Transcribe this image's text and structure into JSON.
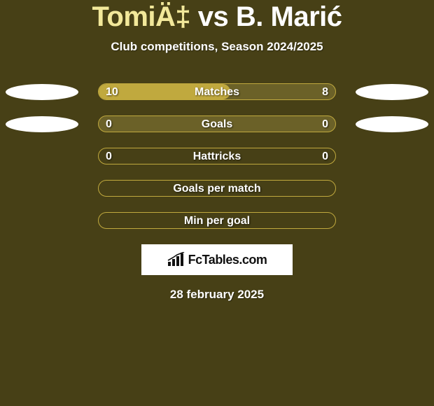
{
  "theme": {
    "background": "#474016",
    "accent": "#f2e89a",
    "ellipse_fill": "#ffffff",
    "text": "#ffffff"
  },
  "title": {
    "player1": "TomiÄ‡",
    "vs": " vs ",
    "player2": "B. Marić"
  },
  "subtitle": "Club competitions, Season 2024/2025",
  "rows": [
    {
      "label": "Matches",
      "left_value": "10",
      "right_value": "8",
      "show_values": true,
      "fill_pct": 55.6,
      "fill_color": "#c0a93e",
      "border_color": "#c0a93e",
      "track_color": "#6b6128",
      "show_ellipses": true
    },
    {
      "label": "Goals",
      "left_value": "0",
      "right_value": "0",
      "show_values": true,
      "fill_pct": 0,
      "fill_color": "#c0a93e",
      "border_color": "#c0a93e",
      "track_color": "#6b6128",
      "show_ellipses": true
    },
    {
      "label": "Hattricks",
      "left_value": "0",
      "right_value": "0",
      "show_values": true,
      "fill_pct": 0,
      "fill_color": "#c0a93e",
      "border_color": "#c0a93e",
      "track_color": "transparent",
      "show_ellipses": false
    },
    {
      "label": "Goals per match",
      "left_value": "",
      "right_value": "",
      "show_values": false,
      "fill_pct": 0,
      "fill_color": "#c0a93e",
      "border_color": "#c0a93e",
      "track_color": "transparent",
      "show_ellipses": false
    },
    {
      "label": "Min per goal",
      "left_value": "",
      "right_value": "",
      "show_values": false,
      "fill_pct": 0,
      "fill_color": "#c0a93e",
      "border_color": "#c0a93e",
      "track_color": "transparent",
      "show_ellipses": false
    }
  ],
  "logo": {
    "text": "FcTables.com",
    "show_chart_icon": true
  },
  "date": "28 february 2025"
}
